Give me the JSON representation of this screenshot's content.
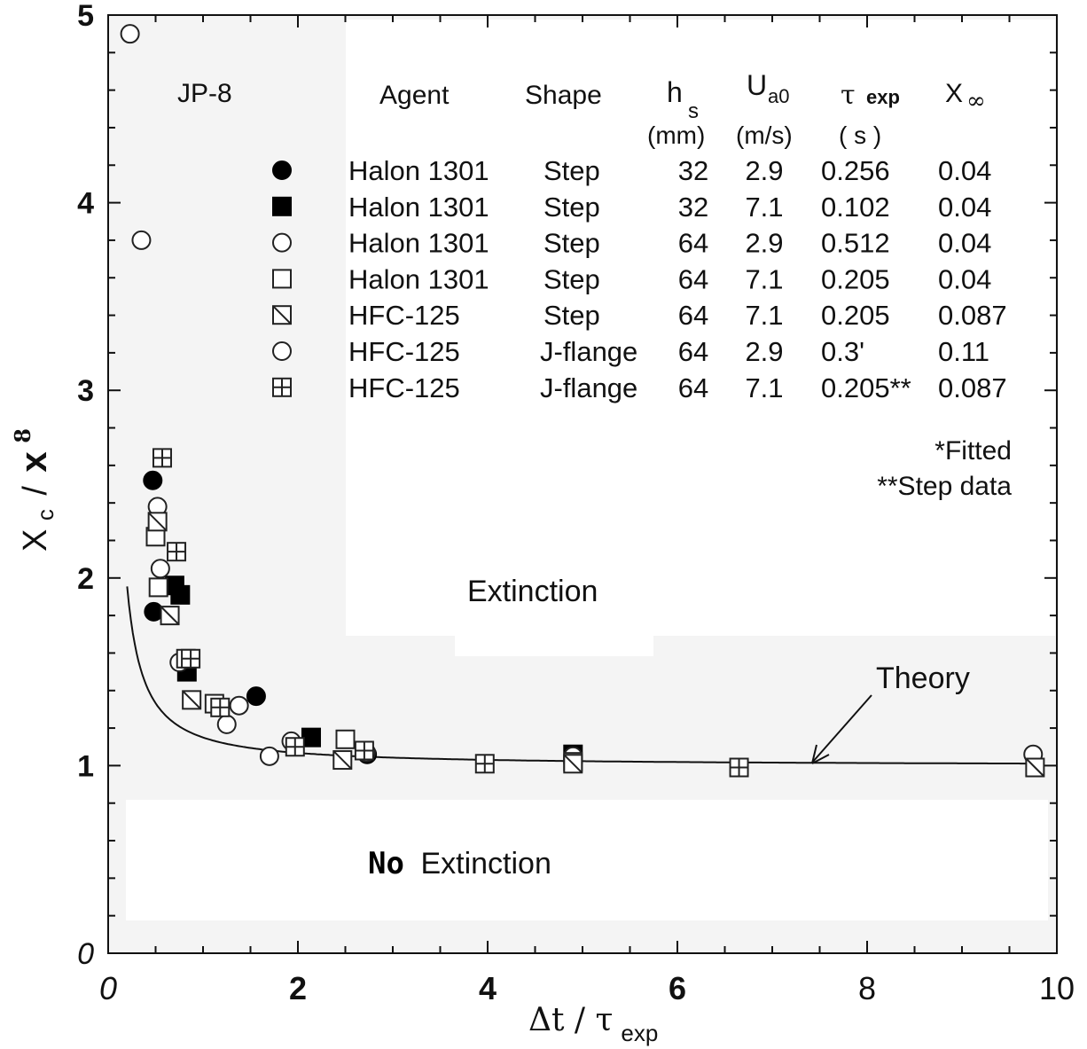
{
  "chart_data": {
    "type": "scatter",
    "fuel_label": "JP-8",
    "xlabel": {
      "main": "Δt / τ",
      "sub": "exp"
    },
    "ylabel": {
      "x": "X",
      "c": "c",
      "slash": "/",
      "bold": "x",
      "sup": "8"
    },
    "xlim": [
      0,
      10
    ],
    "ylim": [
      0,
      5
    ],
    "x_ticks": [
      {
        "value": 0,
        "label": "0"
      },
      {
        "value": 2,
        "label": "2"
      },
      {
        "value": 4,
        "label": "4"
      },
      {
        "value": 6,
        "label": "6"
      },
      {
        "value": 8,
        "label": "8"
      },
      {
        "value": 10,
        "label": "10"
      }
    ],
    "y_ticks": [
      {
        "value": 0,
        "label": "0"
      },
      {
        "value": 1,
        "label": "1"
      },
      {
        "value": 2,
        "label": "2"
      },
      {
        "value": 3,
        "label": "3"
      },
      {
        "value": 4,
        "label": "4"
      },
      {
        "value": 5,
        "label": "5"
      }
    ],
    "region_labels": {
      "extinction": "Extinction",
      "no_extinction_a": "No",
      "no_extinction_b": "Extinction"
    },
    "theory_label": "Theory",
    "theory_curve": {
      "asymptote": 1.0,
      "coefficient": 0.15,
      "exponent": 1.15
    },
    "legend": {
      "headers": {
        "agent": "Agent",
        "shape": "Shape",
        "hs": "h",
        "hs_sub": "s",
        "hs_unit": "(mm)",
        "ua0": "U",
        "ua0_sub": "a0",
        "ua0_unit": "(m/s)",
        "tau": "τ",
        "tau_sub": "exp",
        "tau_unit": "( s )",
        "xinf": "X",
        "xinf_sub": "∞"
      },
      "rows": [
        {
          "marker": "filled-circle",
          "agent": "Halon 1301",
          "shape": "Step",
          "hs": "32",
          "ua0": "2.9",
          "tau": "0.256",
          "xinf": "0.04"
        },
        {
          "marker": "filled-square",
          "agent": "Halon 1301",
          "shape": "Step",
          "hs": "32",
          "ua0": "7.1",
          "tau": "0.102",
          "xinf": "0.04"
        },
        {
          "marker": "open-circle",
          "agent": "Halon 1301",
          "shape": "Step",
          "hs": "64",
          "ua0": "2.9",
          "tau": "0.512",
          "xinf": "0.04"
        },
        {
          "marker": "open-square",
          "agent": "Halon 1301",
          "shape": "Step",
          "hs": "64",
          "ua0": "7.1",
          "tau": "0.205",
          "xinf": "0.04"
        },
        {
          "marker": "slash-square",
          "agent": "HFC-125",
          "shape": "Step",
          "hs": "64",
          "ua0": "7.1",
          "tau": "0.205",
          "xinf": "0.087"
        },
        {
          "marker": "open-circle",
          "agent": "HFC-125",
          "shape": "J-flange",
          "hs": "64",
          "ua0": "2.9",
          "tau": "0.3'",
          "xinf": "0.11"
        },
        {
          "marker": "cross-square",
          "agent": "HFC-125",
          "shape": "J-flange",
          "hs": "64",
          "ua0": "7.1",
          "tau": "0.205**",
          "xinf": "0.087"
        }
      ],
      "footnote_1": "*Fitted",
      "footnote_2": "**Step data"
    },
    "series": [
      {
        "marker": "filled-circle",
        "points": [
          [
            0.47,
            2.52
          ],
          [
            0.48,
            1.82
          ],
          [
            1.56,
            1.37
          ],
          [
            2.73,
            1.06
          ],
          [
            4.9,
            1.04
          ]
        ]
      },
      {
        "marker": "filled-square",
        "points": [
          [
            0.7,
            1.96
          ],
          [
            0.76,
            1.91
          ],
          [
            0.83,
            1.5
          ],
          [
            2.14,
            1.15
          ],
          [
            4.9,
            1.06
          ]
        ]
      },
      {
        "marker": "open-circle",
        "points": [
          [
            0.23,
            4.9
          ],
          [
            0.35,
            3.8
          ],
          [
            0.52,
            2.38
          ],
          [
            0.55,
            2.05
          ],
          [
            0.75,
            1.55
          ],
          [
            1.25,
            1.22
          ],
          [
            1.38,
            1.32
          ],
          [
            1.7,
            1.05
          ],
          [
            1.93,
            1.13
          ],
          [
            2.72,
            1.07
          ],
          [
            4.9,
            1.05
          ],
          [
            9.75,
            1.06
          ]
        ]
      },
      {
        "marker": "open-square",
        "points": [
          [
            0.5,
            2.22
          ],
          [
            0.53,
            1.95
          ],
          [
            0.82,
            1.57
          ],
          [
            1.12,
            1.33
          ],
          [
            2.5,
            1.14
          ],
          [
            4.9,
            1.02
          ]
        ]
      },
      {
        "marker": "slash-square",
        "points": [
          [
            0.52,
            2.3
          ],
          [
            0.65,
            1.8
          ],
          [
            0.88,
            1.35
          ],
          [
            2.47,
            1.03
          ],
          [
            4.9,
            1.01
          ],
          [
            9.77,
            0.99
          ]
        ]
      },
      {
        "marker": "cross-square",
        "points": [
          [
            0.57,
            2.64
          ],
          [
            0.72,
            2.14
          ],
          [
            0.87,
            1.57
          ],
          [
            1.18,
            1.31
          ],
          [
            1.97,
            1.1
          ],
          [
            2.7,
            1.08
          ],
          [
            3.97,
            1.01
          ],
          [
            6.65,
            0.99
          ]
        ]
      }
    ]
  }
}
